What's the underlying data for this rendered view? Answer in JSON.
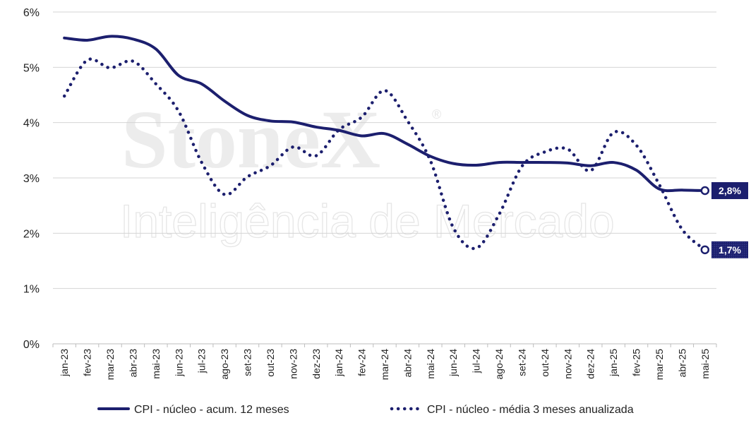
{
  "chart_data": {
    "type": "line",
    "watermark": {
      "brand": "StoneX",
      "registered": "®",
      "tagline": "Inteligência de Mercado"
    },
    "x": [
      "jan-23",
      "fev-23",
      "mar-23",
      "abr-23",
      "mai-23",
      "jun-23",
      "jul-23",
      "ago-23",
      "set-23",
      "out-23",
      "nov-23",
      "dez-23",
      "jan-24",
      "fev-24",
      "mar-24",
      "abr-24",
      "mai-24",
      "jun-24",
      "jul-24",
      "ago-24",
      "set-24",
      "out-24",
      "nov-24",
      "dez-24",
      "jan-25",
      "fev-25",
      "mar-25",
      "abr-25",
      "mai-25"
    ],
    "yticks": [
      "0%",
      "1%",
      "2%",
      "3%",
      "4%",
      "5%",
      "6%"
    ],
    "ylim": [
      0,
      6
    ],
    "grid": true,
    "legend_position": "bottom",
    "series": [
      {
        "name": "CPI - núcleo - acum. 12 meses",
        "style": "solid",
        "color": "#1c1f6e",
        "values": [
          5.53,
          5.49,
          5.56,
          5.51,
          5.33,
          4.85,
          4.7,
          4.39,
          4.13,
          4.03,
          4.01,
          3.92,
          3.86,
          3.76,
          3.8,
          3.61,
          3.39,
          3.26,
          3.23,
          3.28,
          3.28,
          3.28,
          3.27,
          3.22,
          3.28,
          3.14,
          2.8,
          2.78,
          2.77
        ],
        "end_label": "2,8%"
      },
      {
        "name": "CPI - núcleo - média 3 meses anualizada",
        "style": "dotted",
        "color": "#1c1f6e",
        "values": [
          4.48,
          5.13,
          4.99,
          5.11,
          4.7,
          4.2,
          3.28,
          2.7,
          3.02,
          3.22,
          3.56,
          3.4,
          3.87,
          4.1,
          4.58,
          4.03,
          3.31,
          2.1,
          1.73,
          2.34,
          3.21,
          3.47,
          3.52,
          3.13,
          3.82,
          3.59,
          2.88,
          2.07,
          1.7
        ],
        "end_label": "1,7%"
      }
    ]
  }
}
